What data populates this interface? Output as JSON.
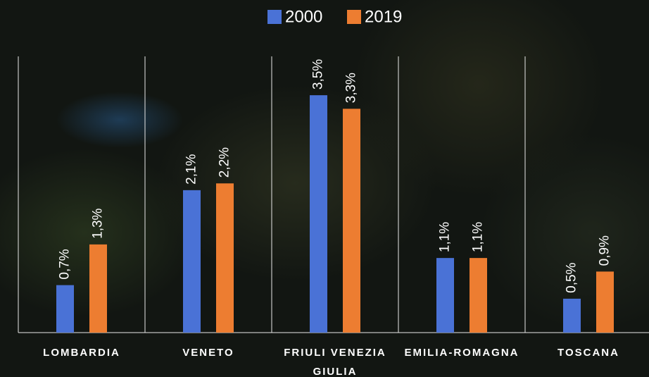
{
  "chart_data": {
    "type": "bar",
    "categories": [
      "LOMBARDIA",
      "VENETO",
      "FRIULI VENEZIA GIULIA",
      "EMILIA-ROMAGNA",
      "TOSCANA"
    ],
    "series": [
      {
        "name": "2000",
        "color": "#4a72d6",
        "values": [
          0.7,
          2.1,
          3.5,
          1.1,
          0.5
        ],
        "value_labels": [
          "0,7%",
          "2,1%",
          "3,5%",
          "1,1%",
          "0,5%"
        ]
      },
      {
        "name": "2019",
        "color": "#ed7d31",
        "values": [
          1.3,
          2.2,
          3.3,
          1.1,
          0.9
        ],
        "value_labels": [
          "1,3%",
          "2,2%",
          "3,3%",
          "1,1%",
          "0,9%"
        ]
      }
    ],
    "ylim": [
      0,
      4
    ]
  }
}
